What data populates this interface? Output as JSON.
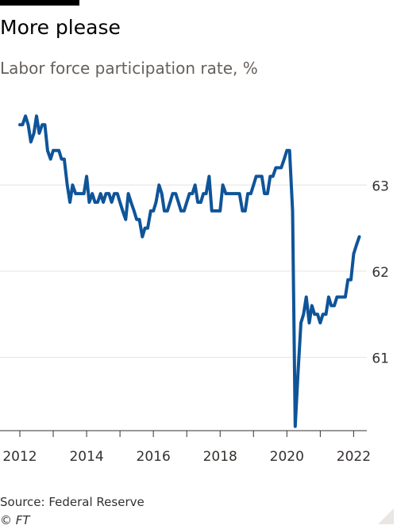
{
  "header": {
    "title": "More please",
    "subtitle": "Labor force participation rate, %"
  },
  "footer": {
    "source": "Source: Federal Reserve",
    "credit": "© FT"
  },
  "colors": {
    "line": "#0f5499",
    "grid": "#e6e3df",
    "axis": "#33302e",
    "text": "#33302e",
    "muted": "#66605c"
  },
  "chart_data": {
    "type": "line",
    "title": "More please",
    "subtitle": "Labor force participation rate, %",
    "xlabel": "",
    "ylabel": "",
    "xlim": [
      2012,
      2022.3
    ],
    "ylim": [
      60.15,
      63.95
    ],
    "x_ticks": [
      2012,
      2014,
      2016,
      2018,
      2020,
      2022
    ],
    "y_ticks": [
      61,
      62,
      63
    ],
    "y_axis_side": "right",
    "grid": true,
    "legend": "none",
    "series": [
      {
        "x": [
          2012.0,
          2012.08,
          2012.17,
          2012.25,
          2012.33,
          2012.42,
          2012.5,
          2012.58,
          2012.67,
          2012.75,
          2012.83,
          2012.92,
          2013.0,
          2013.08,
          2013.17,
          2013.25,
          2013.33,
          2013.42,
          2013.5,
          2013.58,
          2013.67,
          2013.75,
          2013.83,
          2013.92,
          2014.0,
          2014.08,
          2014.17,
          2014.25,
          2014.33,
          2014.42,
          2014.5,
          2014.58,
          2014.67,
          2014.75,
          2014.83,
          2014.92,
          2015.0,
          2015.08,
          2015.17,
          2015.25,
          2015.33,
          2015.42,
          2015.5,
          2015.58,
          2015.67,
          2015.75,
          2015.83,
          2015.92,
          2016.0,
          2016.08,
          2016.17,
          2016.25,
          2016.33,
          2016.42,
          2016.5,
          2016.58,
          2016.67,
          2016.75,
          2016.83,
          2016.92,
          2017.0,
          2017.08,
          2017.17,
          2017.25,
          2017.33,
          2017.42,
          2017.5,
          2017.58,
          2017.67,
          2017.75,
          2017.83,
          2017.92,
          2018.0,
          2018.08,
          2018.17,
          2018.25,
          2018.33,
          2018.42,
          2018.5,
          2018.58,
          2018.67,
          2018.75,
          2018.83,
          2018.92,
          2019.0,
          2019.08,
          2019.17,
          2019.25,
          2019.33,
          2019.42,
          2019.5,
          2019.58,
          2019.67,
          2019.75,
          2019.83,
          2019.92,
          2020.0,
          2020.08,
          2020.17,
          2020.25,
          2020.33,
          2020.42,
          2020.5,
          2020.58,
          2020.67,
          2020.75,
          2020.83,
          2020.92,
          2021.0,
          2021.08,
          2021.17,
          2021.25,
          2021.33,
          2021.42,
          2021.5,
          2021.58,
          2021.67,
          2021.75,
          2021.83,
          2021.92,
          2022.0,
          2022.08,
          2022.17
        ],
        "values": [
          63.7,
          63.7,
          63.8,
          63.7,
          63.5,
          63.6,
          63.8,
          63.6,
          63.7,
          63.7,
          63.4,
          63.3,
          63.4,
          63.4,
          63.4,
          63.3,
          63.3,
          63.0,
          62.8,
          63.0,
          62.9,
          62.9,
          62.9,
          62.9,
          63.1,
          62.8,
          62.9,
          62.8,
          62.8,
          62.9,
          62.8,
          62.9,
          62.9,
          62.8,
          62.9,
          62.9,
          62.8,
          62.7,
          62.6,
          62.9,
          62.8,
          62.7,
          62.6,
          62.6,
          62.4,
          62.5,
          62.5,
          62.7,
          62.7,
          62.8,
          63.0,
          62.9,
          62.7,
          62.7,
          62.8,
          62.9,
          62.9,
          62.8,
          62.7,
          62.7,
          62.8,
          62.9,
          62.9,
          63.0,
          62.8,
          62.8,
          62.9,
          62.9,
          63.1,
          62.7,
          62.7,
          62.7,
          62.7,
          63.0,
          62.9,
          62.9,
          62.9,
          62.9,
          62.9,
          62.9,
          62.7,
          62.7,
          62.9,
          62.9,
          63.0,
          63.1,
          63.1,
          63.1,
          62.9,
          62.9,
          63.1,
          63.1,
          63.2,
          63.2,
          63.2,
          63.3,
          63.4,
          63.4,
          62.7,
          60.2,
          60.8,
          61.4,
          61.5,
          61.7,
          61.4,
          61.6,
          61.5,
          61.5,
          61.4,
          61.5,
          61.5,
          61.7,
          61.6,
          61.6,
          61.7,
          61.7,
          61.7,
          61.7,
          61.9,
          61.9,
          62.2,
          62.3,
          62.4
        ]
      }
    ]
  }
}
